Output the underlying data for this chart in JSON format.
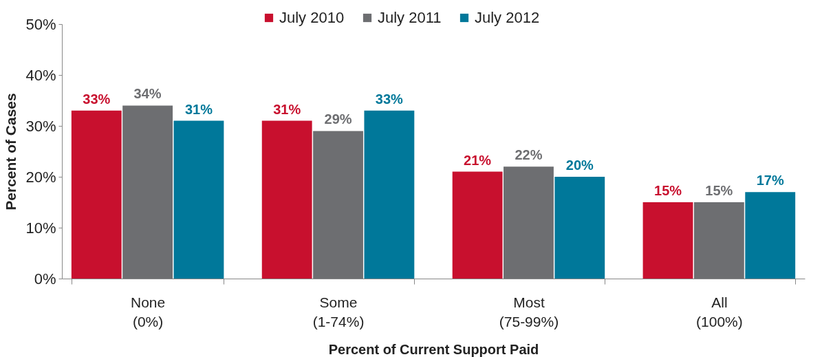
{
  "chart_data": {
    "type": "bar",
    "xlabel": "Percent of Current Support Paid",
    "ylabel": "Percent of Cases",
    "categories": [
      "None\n(0%)",
      "Some\n(1-74%)",
      "Most\n(75-99%)",
      "All\n(100%)"
    ],
    "series": [
      {
        "name": "July 2010",
        "color": "#c8102e",
        "values": [
          33,
          31,
          21,
          15
        ],
        "value_labels": [
          "33%",
          "31%",
          "21%",
          "15%"
        ]
      },
      {
        "name": "July 2011",
        "color": "#6d6e71",
        "values": [
          34,
          29,
          22,
          15
        ],
        "value_labels": [
          "34%",
          "29%",
          "22%",
          "15%"
        ]
      },
      {
        "name": "July 2012",
        "color": "#00789a",
        "values": [
          31,
          33,
          20,
          17
        ],
        "value_labels": [
          "31%",
          "33%",
          "20%",
          "17%"
        ]
      }
    ],
    "ylim": [
      0,
      50
    ],
    "yticks": [
      {
        "value": 0,
        "label": "0%"
      },
      {
        "value": 10,
        "label": "10%"
      },
      {
        "value": 20,
        "label": "20%"
      },
      {
        "value": 30,
        "label": "30%"
      },
      {
        "value": 40,
        "label": "40%"
      },
      {
        "value": 50,
        "label": "50%"
      }
    ],
    "legend": "top",
    "grid": false
  }
}
